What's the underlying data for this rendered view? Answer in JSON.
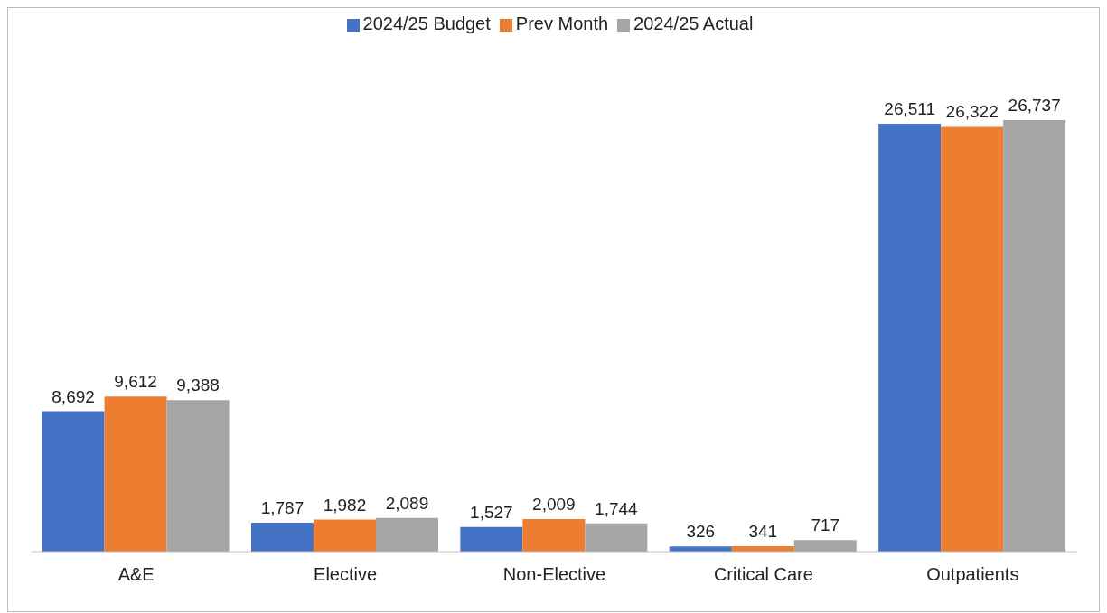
{
  "chart_data": {
    "type": "bar",
    "categories": [
      "A&E",
      "Elective",
      "Non-Elective",
      "Critical Care",
      "Outpatients"
    ],
    "series": [
      {
        "name": "2024/25 Budget",
        "color": "#4472c4",
        "values": [
          8692,
          1787,
          1527,
          326,
          26511
        ],
        "value_labels": [
          "8,692",
          "1,787",
          "1,527",
          "326",
          "26,511"
        ]
      },
      {
        "name": "Prev Month",
        "color": "#ed7d31",
        "values": [
          9612,
          1982,
          2009,
          341,
          26322
        ],
        "value_labels": [
          "9,612",
          "1,982",
          "2,009",
          "341",
          "26,322"
        ]
      },
      {
        "name": "2024/25 Actual",
        "color": "#a5a5a5",
        "values": [
          9388,
          2089,
          1744,
          717,
          26737
        ],
        "value_labels": [
          "9,388",
          "2,089",
          "1,744",
          "717",
          "26,737"
        ]
      }
    ],
    "legend": "top"
  }
}
